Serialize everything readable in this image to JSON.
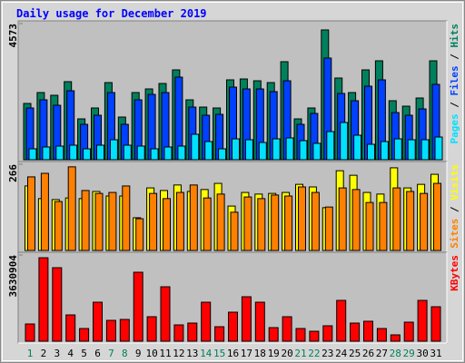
{
  "chart_data": [
    {
      "type": "bar",
      "title": "Daily usage for December 2019",
      "ylim": [
        0,
        4573
      ],
      "yticks": [
        4573
      ],
      "legend_separator": " / ",
      "series": [
        {
          "name": "Hits",
          "color": "#00805c",
          "values": [
            1890,
            2256,
            2165,
            2622,
            1372,
            1738,
            2591,
            1433,
            2256,
            2378,
            2561,
            3018,
            2012,
            1768,
            1738,
            2683,
            2713,
            2652,
            2591,
            3293,
            1372,
            1738,
            4360,
            2744,
            2256,
            3018,
            3323,
            1982,
            1799,
            2073,
            3323
          ]
        },
        {
          "name": "Files",
          "color": "#0040ff",
          "values": [
            1738,
            2012,
            1829,
            2317,
            1189,
            1494,
            2256,
            1189,
            2012,
            2195,
            2256,
            2774,
            1768,
            1494,
            1524,
            2439,
            2378,
            2378,
            2287,
            2652,
            1189,
            1555,
            3415,
            2226,
            1982,
            2470,
            2683,
            1585,
            1494,
            1707,
            2531
          ]
        },
        {
          "name": "Pages",
          "color": "#00e0ff",
          "values": [
            366,
            427,
            457,
            488,
            366,
            488,
            671,
            488,
            457,
            366,
            427,
            457,
            854,
            610,
            366,
            701,
            671,
            579,
            701,
            732,
            640,
            549,
            945,
            1250,
            823,
            518,
            610,
            701,
            671,
            671,
            762
          ]
        }
      ]
    },
    {
      "type": "bar",
      "ylim": [
        0,
        266
      ],
      "yticks": [
        266
      ],
      "legend_separator": " / ",
      "series": [
        {
          "name": "Visits",
          "color": "#ffff00",
          "values": [
            199,
            160,
            157,
            162,
            160,
            182,
            168,
            168,
            101,
            193,
            185,
            202,
            182,
            188,
            207,
            137,
            179,
            174,
            176,
            179,
            204,
            196,
            132,
            246,
            232,
            179,
            174,
            255,
            193,
            204,
            235
          ]
        },
        {
          "name": "Sites",
          "color": "#ff8000",
          "values": [
            227,
            238,
            151,
            258,
            185,
            176,
            179,
            199,
            98,
            176,
            160,
            179,
            202,
            162,
            174,
            118,
            165,
            160,
            171,
            168,
            196,
            179,
            134,
            193,
            188,
            148,
            148,
            193,
            182,
            176,
            207
          ]
        }
      ]
    },
    {
      "type": "bar",
      "ylim": [
        0,
        3630904
      ],
      "yticks": [
        3630904
      ],
      "categories": [
        "1",
        "2",
        "3",
        "4",
        "5",
        "6",
        "7",
        "8",
        "9",
        "10",
        "11",
        "12",
        "13",
        "14",
        "15",
        "16",
        "17",
        "18",
        "19",
        "20",
        "21",
        "22",
        "23",
        "24",
        "25",
        "26",
        "27",
        "28",
        "29",
        "30",
        "31"
      ],
      "category_colors": [
        "#00805c",
        "#000000",
        "#000000",
        "#000000",
        "#000000",
        "#000000",
        "#00805c",
        "#00805c",
        "#000000",
        "#000000",
        "#000000",
        "#000000",
        "#000000",
        "#00805c",
        "#00805c",
        "#000000",
        "#000000",
        "#000000",
        "#000000",
        "#000000",
        "#00805c",
        "#00805c",
        "#000000",
        "#000000",
        "#000000",
        "#000000",
        "#000000",
        "#00805c",
        "#00805c",
        "#000000",
        "#000000"
      ],
      "series": [
        {
          "name": "KBytes",
          "color": "#ff0000",
          "values": [
            726000,
            3516000,
            3096000,
            1108000,
            535000,
            1643000,
            879000,
            917000,
            2905000,
            1032000,
            2293000,
            688000,
            764000,
            1643000,
            611000,
            1223000,
            1873000,
            1643000,
            573000,
            1032000,
            535000,
            420000,
            650000,
            1720000,
            764000,
            841000,
            535000,
            268000,
            803000,
            1720000,
            1452000
          ]
        }
      ]
    }
  ]
}
